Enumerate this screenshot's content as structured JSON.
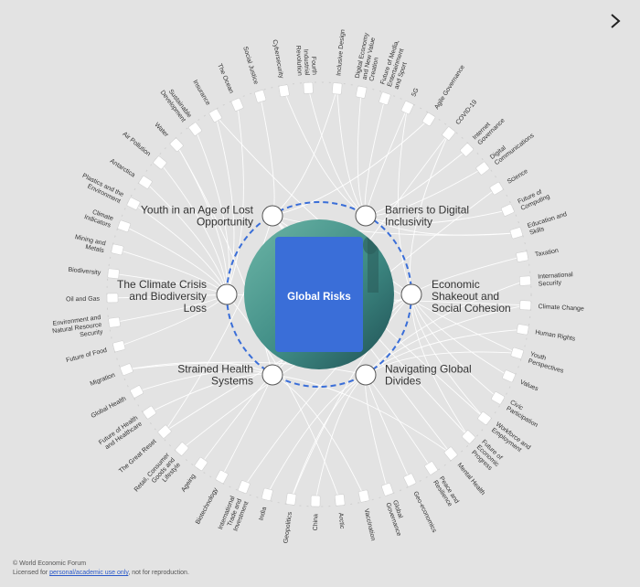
{
  "center": {
    "title": "Global Risks",
    "card_color": "#3a6ed8",
    "ring_color": "#3a6ed8",
    "image_tint": "#5aa59a"
  },
  "themes": [
    {
      "label": "Youth in an Age of Lost Opportunity"
    },
    {
      "label": "Barriers to Digital Inclusivity"
    },
    {
      "label": "Economic Shakeout and Social Cohesion"
    },
    {
      "label": "Navigating Global Divides"
    },
    {
      "label": "Strained Health Systems"
    },
    {
      "label": "The Climate Crisis and Biodiversity Loss"
    }
  ],
  "topics": [
    {
      "label": "Inclusive Design"
    },
    {
      "label": "Digital Economy and New Value Creation"
    },
    {
      "label": "Future of Media, Entertainment and Sport"
    },
    {
      "label": "5G"
    },
    {
      "label": "Agile Governance"
    },
    {
      "label": "COVID-19"
    },
    {
      "label": "Internet Governance"
    },
    {
      "label": "Digital Communications"
    },
    {
      "label": "Science"
    },
    {
      "label": "Future of Computing"
    },
    {
      "label": "Education and Skills"
    },
    {
      "label": "Taxation"
    },
    {
      "label": "International Security"
    },
    {
      "label": "Climate Change"
    },
    {
      "label": "Human Rights"
    },
    {
      "label": "Youth Perspectives"
    },
    {
      "label": "Values"
    },
    {
      "label": "Civic Participation"
    },
    {
      "label": "Workforce and Employment"
    },
    {
      "label": "Future of Economic Progress"
    },
    {
      "label": "Mental Health"
    },
    {
      "label": "Peace and Resilience"
    },
    {
      "label": "Geo-economics"
    },
    {
      "label": "Global Governance"
    },
    {
      "label": "Vaccination"
    },
    {
      "label": "Arctic"
    },
    {
      "label": "China"
    },
    {
      "label": "Geopolitics"
    },
    {
      "label": "India"
    },
    {
      "label": "International Trade and Investment"
    },
    {
      "label": "Biotechnology"
    },
    {
      "label": "Ageing"
    },
    {
      "label": "Retail, Consumer Goods and Lifestyle"
    },
    {
      "label": "The Great Reset"
    },
    {
      "label": "Future of Health and Healthcare"
    },
    {
      "label": "Global Health"
    },
    {
      "label": "Migration"
    },
    {
      "label": "Future of Food"
    },
    {
      "label": "Environment and Natural Resource Security"
    },
    {
      "label": "Oil and Gas"
    },
    {
      "label": "Biodiversity"
    },
    {
      "label": "Mining and Metals"
    },
    {
      "label": "Climate Indicators"
    },
    {
      "label": "Plastics and the Environment"
    },
    {
      "label": "Antarctica"
    },
    {
      "label": "Air Pollution"
    },
    {
      "label": "Water"
    },
    {
      "label": "Sustainable Development"
    },
    {
      "label": "Insurance"
    },
    {
      "label": "The Ocean"
    },
    {
      "label": "Social Justice"
    },
    {
      "label": "Cybersecurity"
    },
    {
      "label": "Fourth Industrial Revolution"
    }
  ],
  "links": [
    [
      0,
      1
    ],
    [
      1,
      1
    ],
    [
      2,
      1
    ],
    [
      3,
      1
    ],
    [
      4,
      0
    ],
    [
      5,
      2
    ],
    [
      6,
      1
    ],
    [
      7,
      1
    ],
    [
      8,
      4
    ],
    [
      9,
      1
    ],
    [
      10,
      0
    ],
    [
      11,
      2
    ],
    [
      12,
      3
    ],
    [
      13,
      5
    ],
    [
      14,
      3
    ],
    [
      15,
      0
    ],
    [
      16,
      2
    ],
    [
      17,
      2
    ],
    [
      18,
      0
    ],
    [
      19,
      2
    ],
    [
      20,
      4
    ],
    [
      21,
      3
    ],
    [
      22,
      3
    ],
    [
      23,
      3
    ],
    [
      24,
      4
    ],
    [
      25,
      5
    ],
    [
      26,
      3
    ],
    [
      27,
      3
    ],
    [
      28,
      3
    ],
    [
      29,
      2
    ],
    [
      30,
      4
    ],
    [
      31,
      4
    ],
    [
      32,
      2
    ],
    [
      33,
      2
    ],
    [
      34,
      4
    ],
    [
      35,
      4
    ],
    [
      36,
      3
    ],
    [
      37,
      5
    ],
    [
      38,
      5
    ],
    [
      39,
      5
    ],
    [
      40,
      5
    ],
    [
      41,
      5
    ],
    [
      42,
      5
    ],
    [
      43,
      5
    ],
    [
      44,
      5
    ],
    [
      45,
      5
    ],
    [
      46,
      5
    ],
    [
      47,
      5
    ],
    [
      48,
      2
    ],
    [
      49,
      5
    ],
    [
      50,
      0
    ],
    [
      51,
      1
    ],
    [
      52,
      1
    ],
    [
      5,
      4
    ],
    [
      10,
      1
    ],
    [
      13,
      3
    ],
    [
      15,
      3
    ],
    [
      18,
      2
    ],
    [
      20,
      0
    ],
    [
      27,
      2
    ],
    [
      33,
      0
    ],
    [
      36,
      4
    ],
    [
      46,
      4
    ],
    [
      0,
      0
    ],
    [
      3,
      2
    ],
    [
      48,
      5
    ],
    [
      19,
      0
    ]
  ],
  "footer": {
    "copyright": "© World Economic Forum",
    "licensed_prefix": "Licensed for",
    "license_link": "personal/academic use only",
    "licensed_suffix": ", not for reproduction."
  }
}
